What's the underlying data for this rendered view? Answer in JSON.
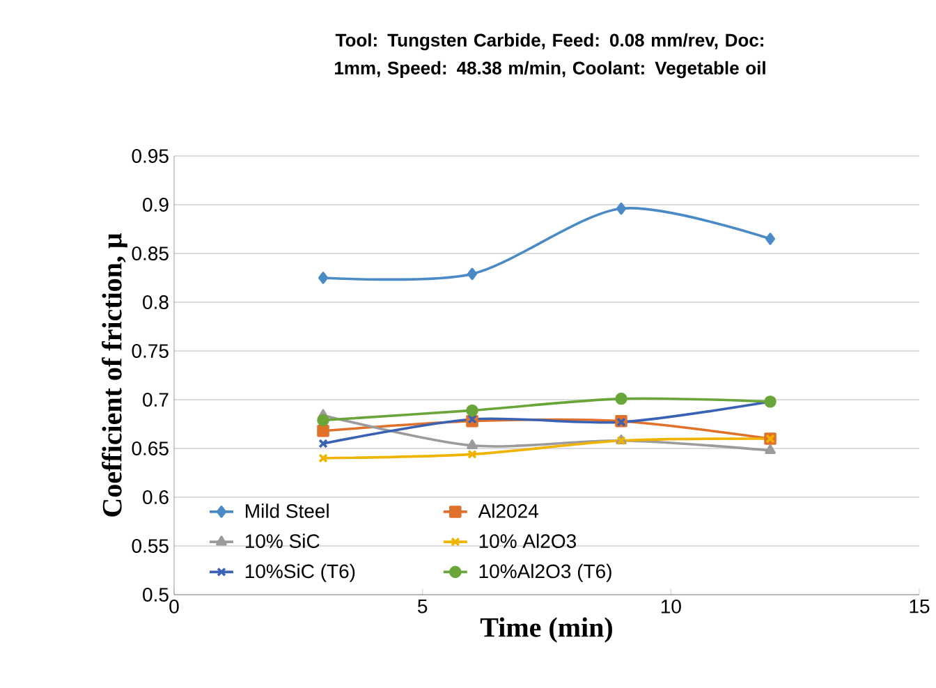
{
  "chart_data": {
    "type": "line",
    "title": "Tool: Tungsten  Carbide, Feed: 0.08 mm/rev, Doc: 1mm, Speed: 48.38 m/min, Coolant: Vegetable oil",
    "xlabel": "Time  (min)",
    "ylabel": "Coefficient of friction, μ",
    "x": [
      3,
      6,
      9,
      12
    ],
    "series": [
      {
        "name": "Mild Steel",
        "color": "#4a8ac6",
        "marker": "diamond",
        "values": [
          0.825,
          0.829,
          0.896,
          0.865
        ]
      },
      {
        "name": "Al2024",
        "color": "#e0712b",
        "marker": "square",
        "values": [
          0.668,
          0.678,
          0.678,
          0.66
        ]
      },
      {
        "name": "10% SiC",
        "color": "#9b9b9b",
        "marker": "triangle",
        "values": [
          0.684,
          0.653,
          0.658,
          0.648
        ]
      },
      {
        "name": "10% Al2O3",
        "color": "#f0b400",
        "marker": "cross",
        "values": [
          0.64,
          0.644,
          0.658,
          0.66
        ]
      },
      {
        "name": "10%SiC (T6)",
        "color": "#3a62b4",
        "marker": "cross",
        "values": [
          0.655,
          0.68,
          0.677,
          0.698
        ]
      },
      {
        "name": "10%Al2O3 (T6)",
        "color": "#6aa53a",
        "marker": "circle",
        "values": [
          0.679,
          0.689,
          0.701,
          0.698
        ]
      }
    ],
    "xlim": [
      0,
      15
    ],
    "xticks": [
      0,
      5,
      10,
      15
    ],
    "ylim": [
      0.5,
      0.95
    ],
    "yticks": [
      0.5,
      0.55,
      0.6,
      0.65,
      0.7,
      0.75,
      0.8,
      0.85,
      0.9,
      0.95
    ],
    "grid": "y",
    "legend": "bottom",
    "line_style": "solid"
  }
}
